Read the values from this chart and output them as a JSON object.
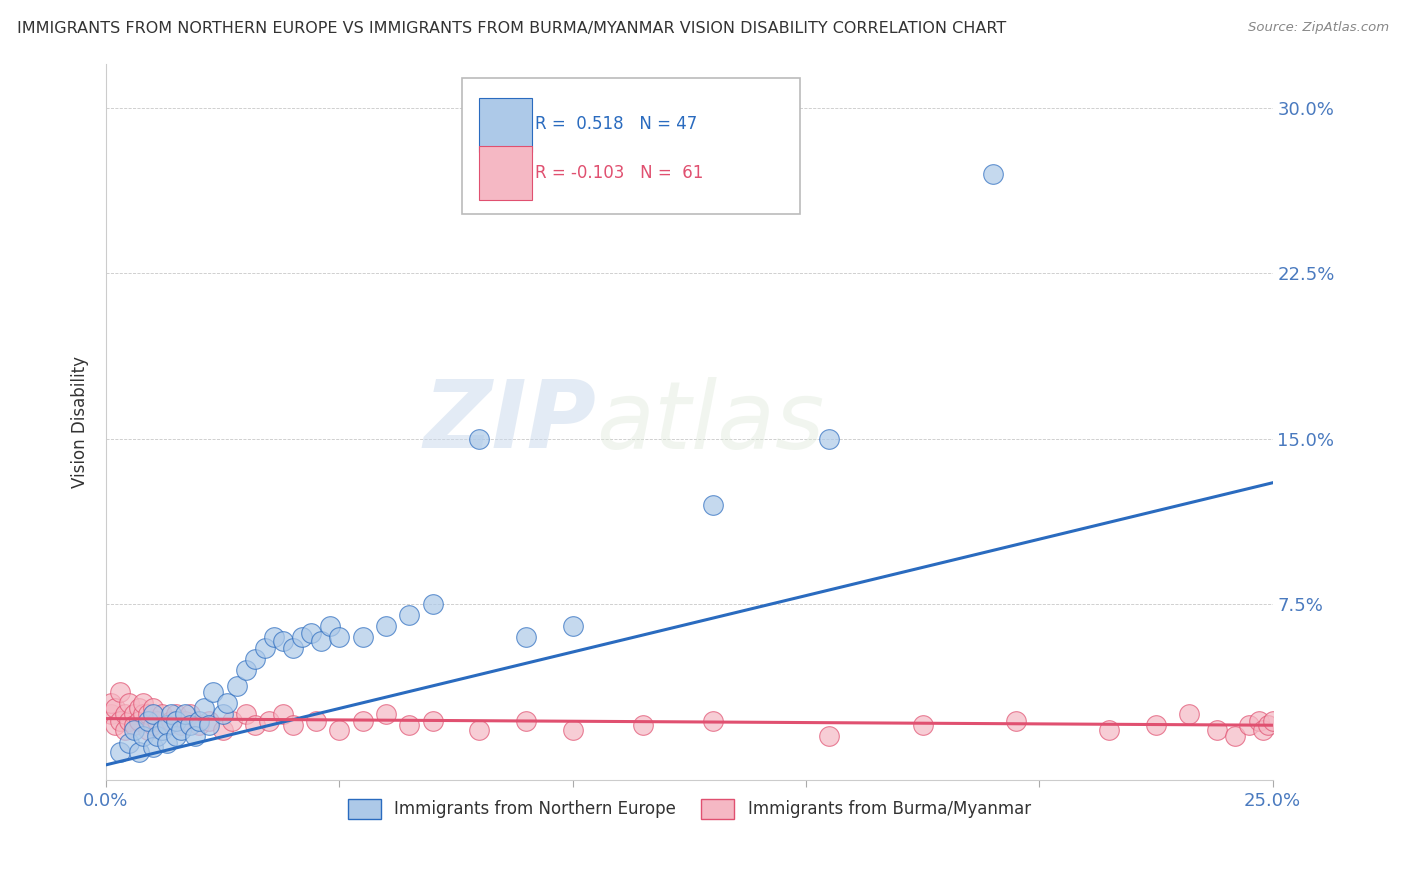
{
  "title": "IMMIGRANTS FROM NORTHERN EUROPE VS IMMIGRANTS FROM BURMA/MYANMAR VISION DISABILITY CORRELATION CHART",
  "source": "Source: ZipAtlas.com",
  "xlabel_blue": "Immigrants from Northern Europe",
  "xlabel_pink": "Immigrants from Burma/Myanmar",
  "ylabel": "Vision Disability",
  "xlim": [
    0.0,
    0.25
  ],
  "ylim": [
    -0.005,
    0.32
  ],
  "xticks": [
    0.0,
    0.05,
    0.1,
    0.15,
    0.2,
    0.25
  ],
  "xtick_labels": [
    "0.0%",
    "",
    "",
    "",
    "",
    "25.0%"
  ],
  "ytick_labels": [
    "7.5%",
    "15.0%",
    "22.5%",
    "30.0%"
  ],
  "yticks": [
    0.075,
    0.15,
    0.225,
    0.3
  ],
  "blue_color": "#adc9e8",
  "pink_color": "#f5b8c4",
  "blue_line_color": "#2a6bbf",
  "pink_line_color": "#e05070",
  "title_color": "#333333",
  "axis_label_color": "#4a7abf",
  "watermark_zip": "ZIP",
  "watermark_atlas": "atlas",
  "blue_scatter_x": [
    0.003,
    0.005,
    0.006,
    0.007,
    0.008,
    0.009,
    0.01,
    0.01,
    0.011,
    0.012,
    0.013,
    0.013,
    0.014,
    0.015,
    0.015,
    0.016,
    0.017,
    0.018,
    0.019,
    0.02,
    0.021,
    0.022,
    0.023,
    0.025,
    0.026,
    0.028,
    0.03,
    0.032,
    0.034,
    0.036,
    0.038,
    0.04,
    0.042,
    0.044,
    0.046,
    0.048,
    0.05,
    0.055,
    0.06,
    0.065,
    0.07,
    0.08,
    0.09,
    0.1,
    0.13,
    0.155,
    0.19
  ],
  "blue_scatter_y": [
    0.008,
    0.012,
    0.018,
    0.008,
    0.015,
    0.022,
    0.01,
    0.025,
    0.015,
    0.018,
    0.02,
    0.012,
    0.025,
    0.015,
    0.022,
    0.018,
    0.025,
    0.02,
    0.015,
    0.022,
    0.028,
    0.02,
    0.035,
    0.025,
    0.03,
    0.038,
    0.045,
    0.05,
    0.055,
    0.06,
    0.058,
    0.055,
    0.06,
    0.062,
    0.058,
    0.065,
    0.06,
    0.06,
    0.065,
    0.07,
    0.075,
    0.15,
    0.06,
    0.065,
    0.12,
    0.15,
    0.27
  ],
  "pink_scatter_x": [
    0.001,
    0.001,
    0.002,
    0.002,
    0.003,
    0.003,
    0.004,
    0.004,
    0.005,
    0.005,
    0.006,
    0.006,
    0.007,
    0.007,
    0.008,
    0.008,
    0.009,
    0.009,
    0.01,
    0.01,
    0.011,
    0.012,
    0.013,
    0.014,
    0.015,
    0.016,
    0.017,
    0.018,
    0.02,
    0.022,
    0.025,
    0.027,
    0.03,
    0.032,
    0.035,
    0.038,
    0.04,
    0.045,
    0.05,
    0.055,
    0.06,
    0.065,
    0.07,
    0.08,
    0.09,
    0.1,
    0.115,
    0.13,
    0.155,
    0.175,
    0.195,
    0.215,
    0.225,
    0.232,
    0.238,
    0.242,
    0.245,
    0.247,
    0.248,
    0.249,
    0.25
  ],
  "pink_scatter_y": [
    0.025,
    0.03,
    0.02,
    0.028,
    0.022,
    0.035,
    0.018,
    0.025,
    0.022,
    0.03,
    0.025,
    0.02,
    0.028,
    0.022,
    0.025,
    0.03,
    0.018,
    0.025,
    0.02,
    0.028,
    0.022,
    0.025,
    0.02,
    0.022,
    0.025,
    0.02,
    0.022,
    0.025,
    0.02,
    0.022,
    0.018,
    0.022,
    0.025,
    0.02,
    0.022,
    0.025,
    0.02,
    0.022,
    0.018,
    0.022,
    0.025,
    0.02,
    0.022,
    0.018,
    0.022,
    0.018,
    0.02,
    0.022,
    0.015,
    0.02,
    0.022,
    0.018,
    0.02,
    0.025,
    0.018,
    0.015,
    0.02,
    0.022,
    0.018,
    0.02,
    0.022
  ],
  "blue_trend_x": [
    0.0,
    0.25
  ],
  "blue_trend_y": [
    0.002,
    0.13
  ],
  "pink_trend_x": [
    0.0,
    0.25
  ],
  "pink_trend_y": [
    0.023,
    0.02
  ]
}
